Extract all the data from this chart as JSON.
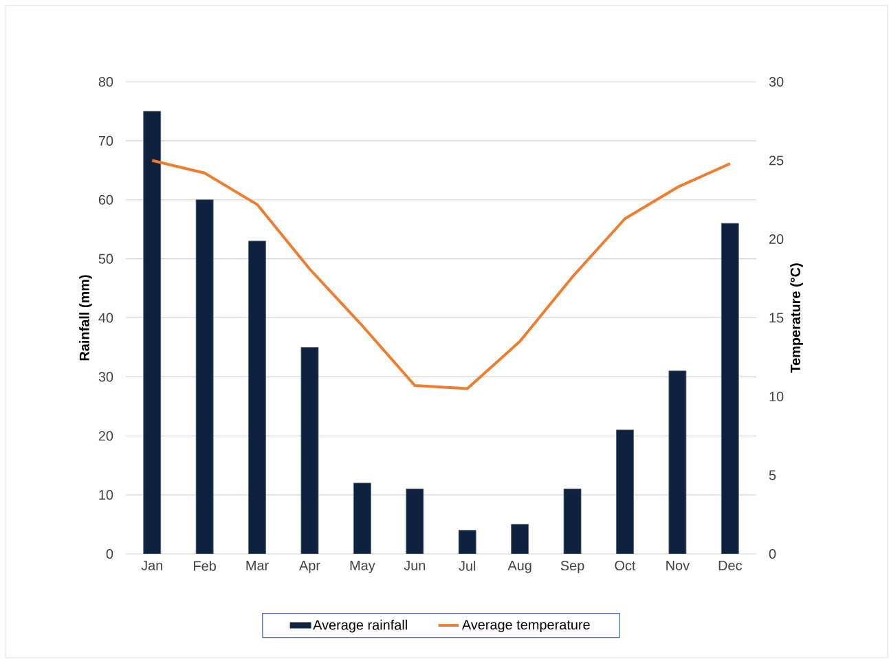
{
  "chart_data": {
    "type": "bar",
    "categories": [
      "Jan",
      "Feb",
      "Mar",
      "Apr",
      "May",
      "Jun",
      "Jul",
      "Aug",
      "Sep",
      "Oct",
      "Nov",
      "Dec"
    ],
    "series": [
      {
        "name": "Average rainfall",
        "color": "#0e2240",
        "values": [
          75,
          60,
          53,
          35,
          12,
          11,
          4,
          5,
          11,
          21,
          31,
          56
        ]
      },
      {
        "name": "Average temperature",
        "type": "line",
        "axis": "y2",
        "color": "#ed7d31",
        "values": [
          25.0,
          24.2,
          22.2,
          18.1,
          14.5,
          10.7,
          10.5,
          13.5,
          17.6,
          21.3,
          23.3,
          24.8
        ]
      }
    ],
    "ylabel": "Rainfall (mm)",
    "y2label": "Temperature (°C)",
    "ylim": [
      0,
      80
    ],
    "yticks": [
      0,
      10,
      20,
      30,
      40,
      50,
      60,
      70,
      80
    ],
    "y2lim": [
      0,
      30
    ],
    "y2ticks": [
      0,
      5,
      10,
      15,
      20,
      25,
      30
    ],
    "grid": "y",
    "legend": "bottom"
  }
}
